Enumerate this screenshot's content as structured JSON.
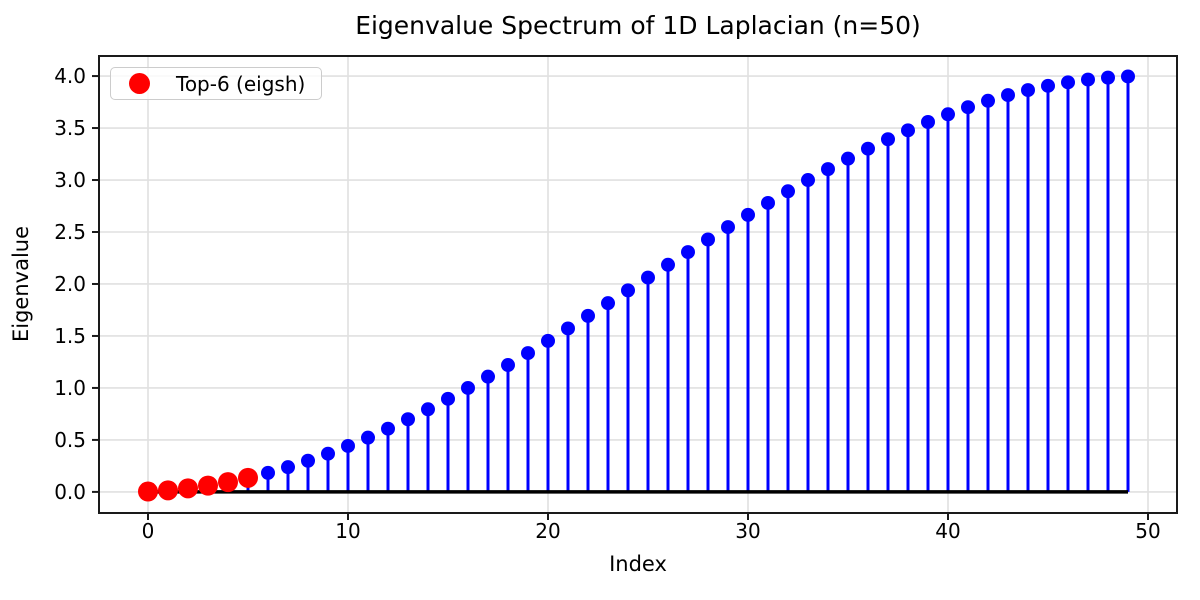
{
  "chart_data": {
    "type": "stem",
    "title": "Eigenvalue Spectrum of 1D Laplacian (n=50)",
    "xlabel": "Index",
    "ylabel": "Eigenvalue",
    "n": 50,
    "x": [
      0,
      1,
      2,
      3,
      4,
      5,
      6,
      7,
      8,
      9,
      10,
      11,
      12,
      13,
      14,
      15,
      16,
      17,
      18,
      19,
      20,
      21,
      22,
      23,
      24,
      25,
      26,
      27,
      28,
      29,
      30,
      31,
      32,
      33,
      34,
      35,
      36,
      37,
      38,
      39,
      40,
      41,
      42,
      43,
      44,
      45,
      46,
      47,
      48,
      49
    ],
    "values": [
      0.0038,
      0.0152,
      0.0341,
      0.0604,
      0.0941,
      0.1351,
      0.1831,
      0.238,
      0.2996,
      0.3676,
      0.4419,
      0.522,
      0.6078,
      0.6988,
      0.7948,
      0.8953,
      1.0,
      1.1086,
      1.2205,
      1.3353,
      1.4527,
      1.5722,
      1.6933,
      1.8155,
      1.9385,
      2.0617,
      2.1845,
      2.3067,
      2.4278,
      2.5473,
      2.6647,
      2.7795,
      2.8914,
      3.0,
      3.1047,
      3.2052,
      3.3012,
      3.3922,
      3.478,
      3.5581,
      3.6324,
      3.7004,
      3.762,
      3.8169,
      3.8649,
      3.9059,
      3.9396,
      3.9659,
      3.9848,
      3.9962
    ],
    "highlight": {
      "count": 6,
      "color": "#ff0000",
      "label": "Top-6 (eigsh)"
    },
    "legend": {
      "label": "Top-6 (eigsh)",
      "position": "upper left",
      "marker_color": "#ff0000"
    },
    "xticks": {
      "values": [
        0,
        10,
        20,
        30,
        40,
        50
      ],
      "labels": [
        "0",
        "10",
        "20",
        "30",
        "40",
        "50"
      ]
    },
    "yticks": {
      "values": [
        0.0,
        0.5,
        1.0,
        1.5,
        2.0,
        2.5,
        3.0,
        3.5,
        4.0
      ],
      "labels": [
        "0.0",
        "0.5",
        "1.0",
        "1.5",
        "2.0",
        "2.5",
        "3.0",
        "3.5",
        "4.0"
      ]
    },
    "xlim": [
      -2.45,
      51.45
    ],
    "ylim": [
      -0.2029,
      4.1929
    ],
    "grid": true,
    "colors": {
      "stem": "#0000ff",
      "marker": "#0000ff",
      "baseline": "#000000",
      "grid": "#e0e0e0",
      "spine": "#1a1a1a",
      "text": "#000000"
    }
  }
}
